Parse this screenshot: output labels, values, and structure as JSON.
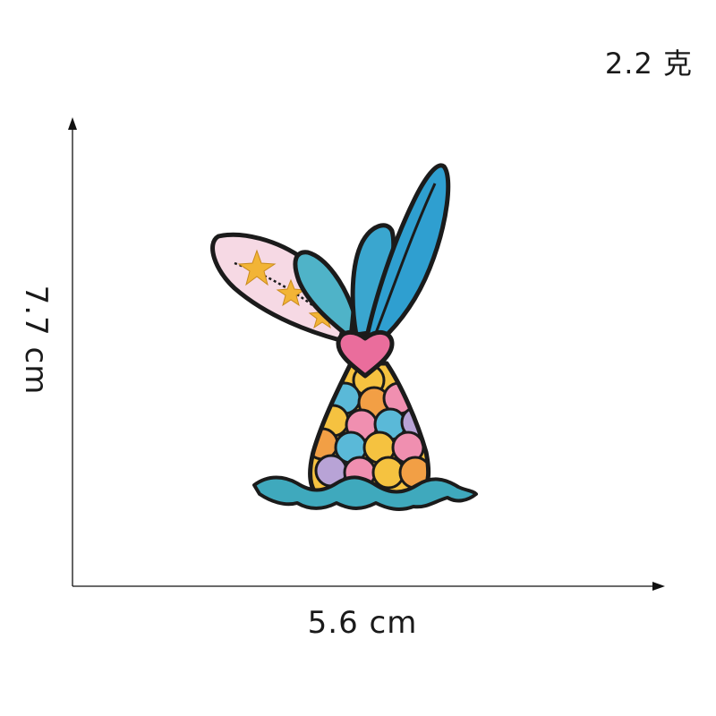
{
  "dimensions": {
    "weight": "2.2 克",
    "width": "5.6 cm",
    "height": "7.7 cm"
  },
  "colors": {
    "background": "#ffffff",
    "axis": "#111111",
    "outline": "#1b1b1b",
    "fin_blue": "#2f9fd0",
    "fin_teal": "#4fb3c8",
    "fin_pink": "#f6d9e4",
    "star_gold": "#f2b436",
    "heart_pink": "#ea6d9c",
    "scale_yellow": "#f5c240",
    "scale_blue": "#5ab9d8",
    "scale_pink": "#f08fb0",
    "scale_orange": "#f29f45",
    "scale_lilac": "#b8a3d6",
    "wave_teal": "#3fa9bd"
  },
  "icons": [
    "mermaid-tail-patch",
    "arrow-up-icon",
    "arrow-right-icon"
  ]
}
